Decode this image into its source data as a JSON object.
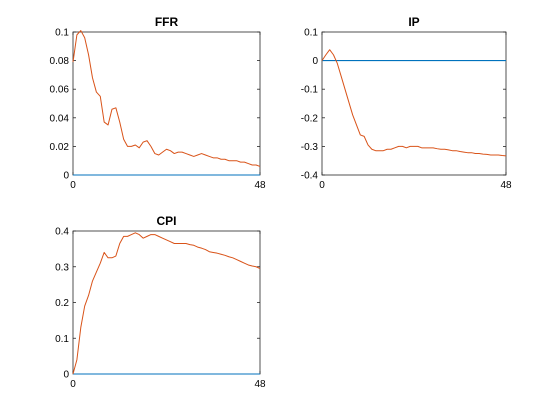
{
  "colors": {
    "response": "#d95319",
    "zero": "#0072bd",
    "axes": "#262626"
  },
  "chart_data": [
    {
      "type": "line",
      "title": "FFR",
      "xlim": [
        0,
        48
      ],
      "ylim": [
        0,
        0.1
      ],
      "xticks": [
        0,
        48
      ],
      "yticks": [
        0,
        0.02,
        0.04,
        0.06,
        0.08,
        0.1
      ],
      "ytick_labels": [
        "0",
        "0.02",
        "0.04",
        "0.06",
        "0.08",
        "0.1"
      ],
      "grid": false,
      "series": [
        {
          "role": "response",
          "x": [
            0,
            1,
            2,
            3,
            4,
            5,
            6,
            7,
            8,
            9,
            10,
            11,
            12,
            13,
            14,
            15,
            16,
            17,
            18,
            19,
            20,
            21,
            22,
            23,
            24,
            25,
            26,
            27,
            28,
            29,
            30,
            31,
            32,
            33,
            34,
            35,
            36,
            37,
            38,
            39,
            40,
            41,
            42,
            43,
            44,
            45,
            46,
            47,
            48
          ],
          "values": [
            0.079,
            0.098,
            0.101,
            0.096,
            0.084,
            0.068,
            0.058,
            0.055,
            0.037,
            0.035,
            0.046,
            0.047,
            0.037,
            0.025,
            0.02,
            0.02,
            0.021,
            0.019,
            0.023,
            0.024,
            0.02,
            0.015,
            0.014,
            0.016,
            0.018,
            0.017,
            0.015,
            0.016,
            0.016,
            0.015,
            0.014,
            0.013,
            0.014,
            0.015,
            0.014,
            0.013,
            0.012,
            0.012,
            0.011,
            0.011,
            0.01,
            0.01,
            0.01,
            0.009,
            0.009,
            0.008,
            0.007,
            0.007,
            0.006
          ]
        },
        {
          "role": "zero",
          "x": [
            0,
            48
          ],
          "values": [
            0,
            0
          ]
        }
      ]
    },
    {
      "type": "line",
      "title": "IP",
      "xlim": [
        0,
        48
      ],
      "ylim": [
        -0.4,
        0.1
      ],
      "xticks": [
        0,
        48
      ],
      "yticks": [
        -0.4,
        -0.3,
        -0.2,
        -0.1,
        0,
        0.1
      ],
      "ytick_labels": [
        "-0.4",
        "-0.3",
        "-0.2",
        "-0.1",
        "0",
        "0.1"
      ],
      "grid": false,
      "series": [
        {
          "role": "response",
          "x": [
            0,
            1,
            2,
            3,
            4,
            5,
            6,
            7,
            8,
            9,
            10,
            11,
            12,
            13,
            14,
            15,
            16,
            17,
            18,
            19,
            20,
            21,
            22,
            23,
            24,
            25,
            26,
            27,
            28,
            29,
            30,
            31,
            32,
            33,
            34,
            35,
            36,
            37,
            38,
            39,
            40,
            41,
            42,
            43,
            44,
            45,
            46,
            47,
            48
          ],
          "values": [
            0,
            0.02,
            0.038,
            0.02,
            -0.01,
            -0.055,
            -0.1,
            -0.145,
            -0.19,
            -0.225,
            -0.26,
            -0.265,
            -0.295,
            -0.31,
            -0.315,
            -0.315,
            -0.315,
            -0.31,
            -0.31,
            -0.305,
            -0.3,
            -0.3,
            -0.305,
            -0.3,
            -0.3,
            -0.3,
            -0.305,
            -0.305,
            -0.305,
            -0.305,
            -0.308,
            -0.31,
            -0.31,
            -0.312,
            -0.315,
            -0.315,
            -0.318,
            -0.32,
            -0.322,
            -0.322,
            -0.325,
            -0.325,
            -0.327,
            -0.328,
            -0.33,
            -0.33,
            -0.33,
            -0.332,
            -0.333
          ]
        },
        {
          "role": "zero",
          "x": [
            0,
            48
          ],
          "values": [
            0,
            0
          ]
        }
      ]
    },
    {
      "type": "line",
      "title": "CPI",
      "xlim": [
        0,
        48
      ],
      "ylim": [
        0,
        0.4
      ],
      "xticks": [
        0,
        48
      ],
      "yticks": [
        0,
        0.1,
        0.2,
        0.3,
        0.4
      ],
      "ytick_labels": [
        "0",
        "0.1",
        "0.2",
        "0.3",
        "0.4"
      ],
      "grid": false,
      "series": [
        {
          "role": "response",
          "x": [
            0,
            1,
            2,
            3,
            4,
            5,
            6,
            7,
            8,
            9,
            10,
            11,
            12,
            13,
            14,
            15,
            16,
            17,
            18,
            19,
            20,
            21,
            22,
            23,
            24,
            25,
            26,
            27,
            28,
            29,
            30,
            31,
            32,
            33,
            34,
            35,
            36,
            37,
            38,
            39,
            40,
            41,
            42,
            43,
            44,
            45,
            46,
            47,
            48
          ],
          "values": [
            0,
            0.04,
            0.13,
            0.19,
            0.22,
            0.26,
            0.285,
            0.31,
            0.34,
            0.325,
            0.325,
            0.33,
            0.365,
            0.385,
            0.385,
            0.39,
            0.395,
            0.39,
            0.38,
            0.385,
            0.39,
            0.39,
            0.385,
            0.38,
            0.375,
            0.37,
            0.365,
            0.365,
            0.365,
            0.365,
            0.362,
            0.36,
            0.355,
            0.352,
            0.348,
            0.342,
            0.34,
            0.338,
            0.335,
            0.332,
            0.328,
            0.325,
            0.32,
            0.315,
            0.31,
            0.305,
            0.302,
            0.3,
            0.295
          ]
        },
        {
          "role": "zero",
          "x": [
            0,
            48
          ],
          "values": [
            0,
            0
          ]
        }
      ]
    }
  ]
}
